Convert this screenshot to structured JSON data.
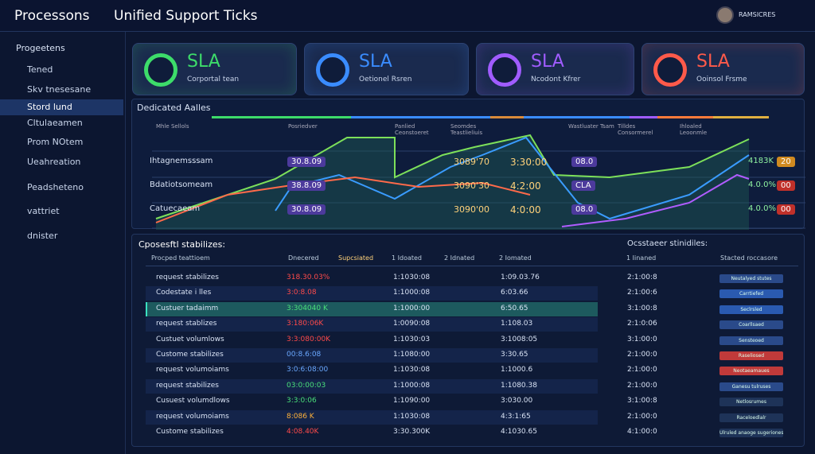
{
  "header": {
    "app": "Processons",
    "title": "Unified Support Ticks",
    "user": "RAMSICRES"
  },
  "sidebar": {
    "title": "Progeetens",
    "items": [
      "Tened",
      "Skv tnesesane",
      "Stord lund",
      "Cltulaeamen",
      "Prom NOtem",
      "Ueahreation",
      "Peadsheteno",
      "vattriet",
      "dnister"
    ],
    "active": 2
  },
  "cards": [
    {
      "title": "SLA",
      "subtitle": "Corportal tean",
      "color": "#3ddc6a"
    },
    {
      "title": "SLA",
      "subtitle": "Oetionel Rsren",
      "color": "#3a8cff"
    },
    {
      "title": "SLA",
      "subtitle": "Ncodont Kfrer",
      "color": "#a05cff"
    },
    {
      "title": "SLA",
      "subtitle": "Ooinsol Frsme",
      "color": "#ff5a4a"
    }
  ],
  "panel": {
    "title": "Dedicated Aalles",
    "columns": [
      "Mhle Sellols",
      "Posriedver",
      "Panlied Ceonstoeret",
      "Seomdes Teastlieliuis",
      "Wastluater Tsam",
      "Tilldes Consormerel",
      "Ihloaled Leoonmle"
    ],
    "rows": [
      {
        "label": "Ihtagnemsssam",
        "a": "30.8.09",
        "b": "3089'70",
        "c": "3:30:00",
        "d": "08.0",
        "e": "4183K",
        "f": "20"
      },
      {
        "label": "Bdatiotsomeam",
        "a": "38.8.09",
        "b": "3090'30",
        "c": "4:2:00",
        "d": "CLA",
        "e": "4.0.0%",
        "f": "00"
      },
      {
        "label": "Catuecaeam",
        "a": "30.8.09",
        "b": "3090'00",
        "c": "4:0:00",
        "d": "08.0",
        "e": "4.0.0%",
        "f": "00"
      }
    ]
  },
  "table": {
    "title": "Cposesftl stabilizes:",
    "side_title": "Ocsstaeer stinidiles:",
    "columns": [
      "Procped teattioem",
      "Dnecered",
      "Supcsiated",
      "1 Idoated",
      "2 Idnated",
      "2 Iomated",
      "1 Iinaned",
      "Stacted roccasore"
    ],
    "rows": [
      {
        "name": "request stabilizes",
        "v1": "318.30.03%",
        "color": "#ff4a4a",
        "v2": "1:1030:08",
        "v3": "1:09.03.76",
        "v4": "2:1:00:8",
        "status": "Neutalyed stutes",
        "status_color": "#2a4a8a"
      },
      {
        "name": "Codestate i lles",
        "v1": "3:0:8.08",
        "color": "#ff4a4a",
        "v2": "1:1000:08",
        "v3": "6:03.66",
        "v4": "2:1:00:6",
        "status": "Carrtiefed",
        "status_color": "#2a5ab0"
      },
      {
        "name": "Custuer tadaimm",
        "v1": "3:304040 K",
        "color": "#4ae07a",
        "v2": "1:1000:00",
        "v3": "6:50.65",
        "v4": "3:1:00:8",
        "status": "Seclrsled",
        "status_color": "#2a5ab0"
      },
      {
        "name": "request stablizes",
        "v1": "3:180:06K",
        "color": "#ff4a4a",
        "v2": "1:0090:08",
        "v3": "1:108.03",
        "v4": "2:1:0:06",
        "status": "Coarllsaed",
        "status_color": "#2a4a8a"
      },
      {
        "name": "Custuet volumlows",
        "v1": "3:3:080:00K",
        "color": "#ff4a4a",
        "v2": "1:1030:03",
        "v3": "3:1008:05",
        "v4": "3:1:00:0",
        "status": "Sensteoed",
        "status_color": "#2a4a8a"
      },
      {
        "name": "Custome stabilizes",
        "v1": "00:8.6:08",
        "color": "#6aa8ff",
        "v2": "1:1080:00",
        "v3": "3:30.65",
        "v4": "2:1:00:0",
        "status": "Raseliosed",
        "status_color": "#c03a3a"
      },
      {
        "name": "request volumoiams",
        "v1": "3:0:6:08:00",
        "color": "#6aa8ff",
        "v2": "1:1030:08",
        "v3": "1:1000.6",
        "v4": "2:1:00:0",
        "status": "Neotaeamaues",
        "status_color": "#c03a3a"
      },
      {
        "name": "request stabilizes",
        "v1": "03:0:00:03",
        "color": "#4ae07a",
        "v2": "1:1000:08",
        "v3": "1:1080.38",
        "v4": "2:1:00:0",
        "status": "Ganesu tulruses",
        "status_color": "#2a4a8a"
      },
      {
        "name": "Cusuest volumdlows",
        "v1": "3:3:0:06",
        "color": "#4ae07a",
        "v2": "1:1090:00",
        "v3": "3:030.00",
        "v4": "3:1:00:8",
        "status": "Netlosrumes",
        "status_color": "#1e3358"
      },
      {
        "name": "request volumoiams",
        "v1": "8:086 K",
        "color": "#ffb23a",
        "v2": "1:1030:08",
        "v3": "4:3:1:65",
        "v4": "2:1:00:0",
        "status": "Raceloedlalr",
        "status_color": "#1e3358"
      },
      {
        "name": "Custome stabilizes",
        "v1": "4:08.40K",
        "color": "#ff4a4a",
        "v2": "3:30.300K",
        "v3": "4:1030.65",
        "v4": "4:1:00:0",
        "status": "Ulruled anaoge sugeriones",
        "status_color": "#1e3358"
      }
    ]
  }
}
